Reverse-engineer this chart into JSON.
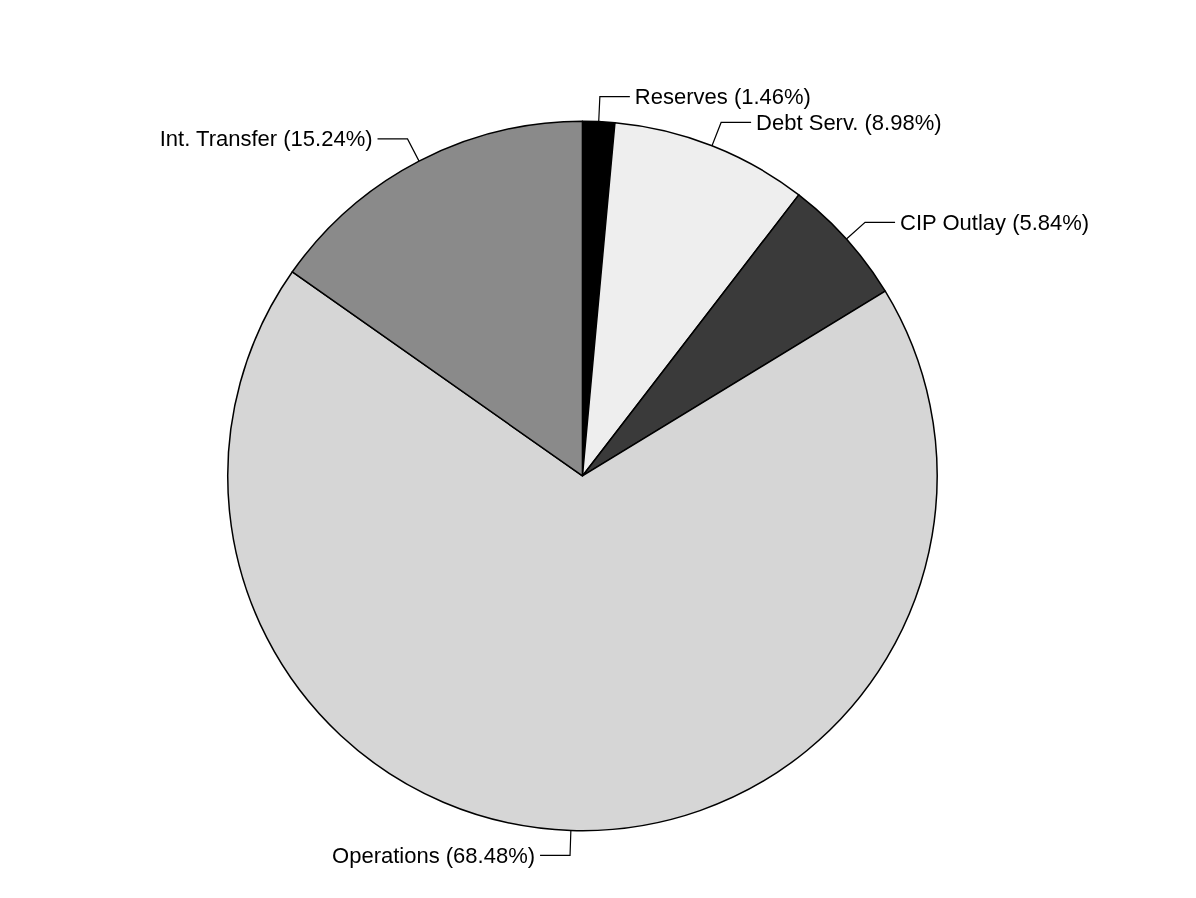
{
  "chart_data": {
    "type": "pie",
    "categories": [
      "Reserves",
      "Debt Serv.",
      "CIP Outlay",
      "Operations",
      "Int. Transfer"
    ],
    "values": [
      1.46,
      8.98,
      5.84,
      68.48,
      15.24
    ],
    "colors": [
      "#000000",
      "#eeeeee",
      "#3a3a3a",
      "#d6d6d6",
      "#8a8a8a"
    ],
    "value_labels": [
      "(1.46%)",
      "(8.98%)",
      "(5.84%)",
      "(68.48%)",
      "(15.24%)"
    ],
    "legend": false
  }
}
